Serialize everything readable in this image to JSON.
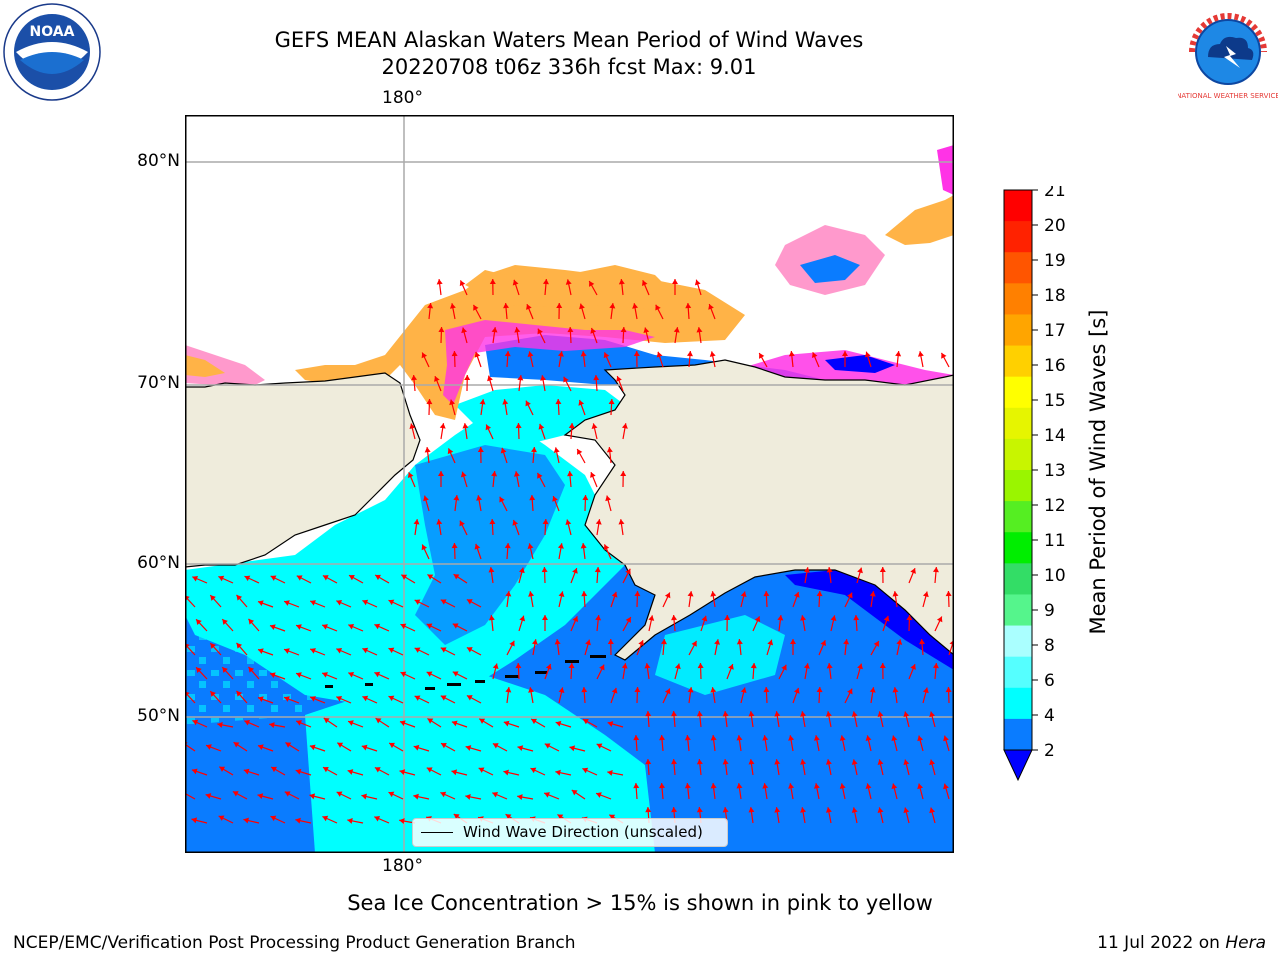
{
  "title": {
    "line1": "GEFS MEAN Alaskan Waters Mean Period of Wind Waves",
    "line2": "20220708 t06z 336h fcst   Max: 9.01"
  },
  "map": {
    "lon_label_top": "180°",
    "lon_label_bottom": "180°",
    "lat_labels": [
      "80°N",
      "70°N",
      "60°N",
      "50°N"
    ],
    "land_color": "#efecdc",
    "ocean_colors": {
      "deep_blue": "#0000ff",
      "blue": "#0a7cff",
      "cyan": "#00ffff",
      "light_cyan": "#4dffff"
    },
    "ice_colors": [
      "#ff33e6",
      "#ff99cc",
      "#ffb347",
      "#ffcc33"
    ],
    "arrow_color": "#ff0000",
    "legend_label": "Wind Wave Direction (unscaled)"
  },
  "colorbar": {
    "label": "Mean Period of Wind Waves [s]",
    "ticks": [
      "21",
      "20",
      "19",
      "18",
      "17",
      "16",
      "15",
      "14",
      "13",
      "12",
      "11",
      "10",
      "9",
      "8",
      "6",
      "4",
      "2"
    ],
    "colors": [
      "#ff0000",
      "#ff2200",
      "#ff5500",
      "#ff8000",
      "#ffa500",
      "#ffd000",
      "#ffff00",
      "#e6f500",
      "#c8f500",
      "#9af500",
      "#55ee22",
      "#00ee00",
      "#33dd66",
      "#55f58c",
      "#aaffff",
      "#55ffff",
      "#00ffff",
      "#0a7cff"
    ],
    "extend_color": "#0000ff"
  },
  "footer": {
    "note": "Sea Ice Concentration > 15% is shown in pink to yellow",
    "credit": "NCEP/EMC/Verification Post Processing Product Generation Branch",
    "date": "11 Jul 2022 on ",
    "machine": "Hera"
  },
  "logos": {
    "noaa_text": "NOAA",
    "nws_text": "NATIONAL WEATHER SERVICE"
  }
}
